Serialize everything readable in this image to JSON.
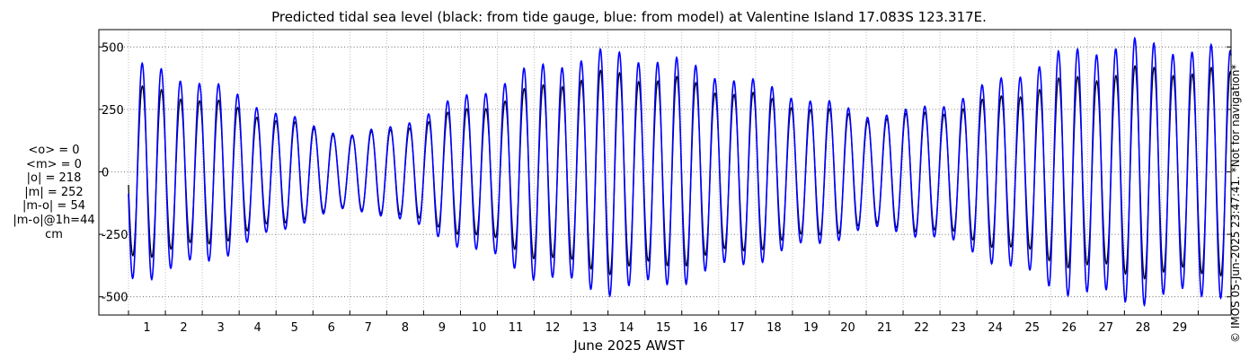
{
  "chart_data": {
    "type": "line",
    "title": "Predicted tidal sea level (black: from tide gauge, blue: from model) at Valentine Island 17.083S 123.317E.",
    "xlabel": "June 2025 AWST",
    "ylabel": "",
    "ylim": [
      -560,
      560
    ],
    "xlim_days": [
      0.0,
      30.0
    ],
    "y_ticks": [
      500,
      250,
      0,
      -250,
      -500
    ],
    "y_tick_labels": [
      "500",
      "250",
      "0",
      "-250",
      "-500"
    ],
    "x_ticks": [
      1,
      2,
      3,
      4,
      5,
      6,
      7,
      8,
      9,
      10,
      11,
      12,
      13,
      14,
      15,
      16,
      17,
      18,
      19,
      20,
      21,
      22,
      23,
      24,
      25,
      26,
      27,
      28,
      29
    ],
    "x_tick_labels": [
      "1",
      "2",
      "3",
      "4",
      "5",
      "6",
      "7",
      "8",
      "9",
      "10",
      "11",
      "12",
      "13",
      "14",
      "15",
      "16",
      "17",
      "18",
      "19",
      "20",
      "21",
      "22",
      "23",
      "24",
      "25",
      "26",
      "27",
      "28",
      "29"
    ],
    "grid": true,
    "line_period_hours": 12.42,
    "series": [
      {
        "name": "tide gauge",
        "color": "#000000",
        "amplitude_days": [
          0,
          1,
          2,
          3,
          4,
          5,
          6,
          7,
          8,
          9,
          10,
          11,
          12,
          13,
          14,
          15,
          16,
          17,
          18,
          19,
          20,
          21,
          22,
          23,
          24,
          25,
          26,
          27,
          28,
          29,
          30
        ],
        "amplitude_values": [
          330,
          320,
          290,
          250,
          210,
          170,
          145,
          160,
          200,
          240,
          280,
          330,
          370,
          390,
          380,
          360,
          330,
          300,
          270,
          240,
          215,
          220,
          240,
          270,
          310,
          350,
          380,
          400,
          410,
          400,
          390
        ]
      },
      {
        "name": "model",
        "color": "#0000ff",
        "amplitude_days": [
          0,
          1,
          2,
          3,
          4,
          5,
          6,
          7,
          8,
          9,
          10,
          11,
          12,
          13,
          14,
          15,
          16,
          17,
          18,
          19,
          20,
          21,
          22,
          23,
          24,
          25,
          26,
          27,
          28,
          29,
          30
        ],
        "amplitude_values": [
          420,
          400,
          360,
          300,
          240,
          180,
          150,
          170,
          230,
          290,
          350,
          410,
          450,
          470,
          460,
          430,
          390,
          350,
          310,
          270,
          230,
          235,
          270,
          320,
          390,
          450,
          490,
          510,
          500,
          490,
          470
        ]
      }
    ],
    "stats": [
      "<o> = 0",
      "<m> = 0",
      "|o| = 218",
      "|m| = 252",
      "|m-o| = 54",
      "|m-o|@1h=44",
      "cm"
    ]
  },
  "credit": "© IMOS 05-Jun-2025 23:47:41. *Not for navigation*",
  "colors": {
    "axis": "#000000",
    "grid": "#b0b0b0",
    "gauge": "#000000",
    "model": "#0000ff"
  }
}
